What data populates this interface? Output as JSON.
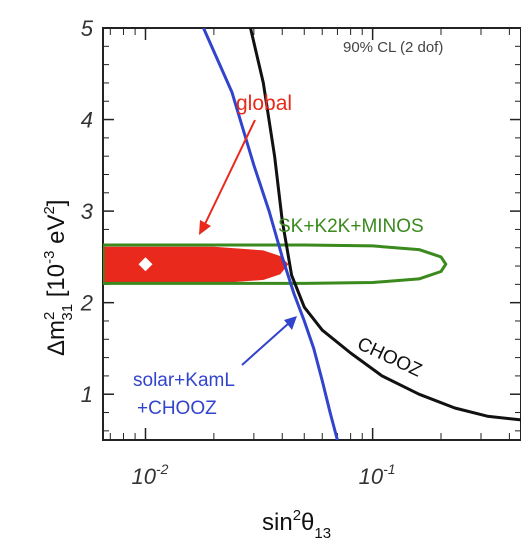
{
  "chart_data": {
    "type": "line",
    "title": "",
    "xlabel": "sin²θ₁₃",
    "ylabel": "Δm²₃₁ [10⁻³ eV²]",
    "xscale": "log",
    "xlim": [
      0.0065,
      0.45
    ],
    "ylim": [
      0.5,
      5
    ],
    "grid": false,
    "x_ticks": [
      {
        "value": 0.01,
        "label_base": "10",
        "label_exp": "-2"
      },
      {
        "value": 0.1,
        "label_base": "10",
        "label_exp": "-1"
      }
    ],
    "y_ticks": [
      {
        "value": 1,
        "label": "1"
      },
      {
        "value": 2,
        "label": "2"
      },
      {
        "value": 3,
        "label": "3"
      },
      {
        "value": 4,
        "label": "4"
      },
      {
        "value": 5,
        "label": "5"
      }
    ],
    "cl_note": "90% CL (2 dof)",
    "series": [
      {
        "name": "CHOOZ",
        "color": "#111111",
        "style": "line",
        "points": [
          [
            0.029,
            5.0
          ],
          [
            0.033,
            4.4
          ],
          [
            0.037,
            3.6
          ],
          [
            0.04,
            2.9
          ],
          [
            0.044,
            2.3
          ],
          [
            0.05,
            1.95
          ],
          [
            0.06,
            1.7
          ],
          [
            0.08,
            1.45
          ],
          [
            0.11,
            1.2
          ],
          [
            0.16,
            1.0
          ],
          [
            0.23,
            0.85
          ],
          [
            0.32,
            0.76
          ],
          [
            0.45,
            0.72
          ]
        ]
      },
      {
        "name": "solar+KamL +CHOOZ",
        "color": "#3344cc",
        "style": "line",
        "points": [
          [
            0.018,
            5.0
          ],
          [
            0.024,
            4.3
          ],
          [
            0.03,
            3.5
          ],
          [
            0.035,
            3.0
          ],
          [
            0.04,
            2.5
          ],
          [
            0.045,
            2.1
          ],
          [
            0.05,
            1.8
          ],
          [
            0.055,
            1.5
          ],
          [
            0.06,
            1.15
          ],
          [
            0.065,
            0.8
          ],
          [
            0.07,
            0.5
          ]
        ]
      },
      {
        "name": "SK+K2K+MINOS",
        "color": "#3a8a1e",
        "style": "closed",
        "points": [
          [
            0.0065,
            2.63
          ],
          [
            0.05,
            2.63
          ],
          [
            0.1,
            2.62
          ],
          [
            0.16,
            2.58
          ],
          [
            0.2,
            2.5
          ],
          [
            0.21,
            2.42
          ],
          [
            0.2,
            2.34
          ],
          [
            0.16,
            2.26
          ],
          [
            0.1,
            2.22
          ],
          [
            0.05,
            2.21
          ],
          [
            0.0065,
            2.21
          ]
        ]
      },
      {
        "name": "global",
        "color": "#e8291c",
        "style": "filled",
        "points": [
          [
            0.0065,
            2.6
          ],
          [
            0.02,
            2.6
          ],
          [
            0.033,
            2.56
          ],
          [
            0.039,
            2.5
          ],
          [
            0.042,
            2.42
          ],
          [
            0.039,
            2.32
          ],
          [
            0.033,
            2.26
          ],
          [
            0.02,
            2.22
          ],
          [
            0.0065,
            2.22
          ]
        ]
      }
    ],
    "best_fit": {
      "x": 0.01,
      "y": 2.42,
      "color": "#ffffff"
    },
    "labels": {
      "global": {
        "text": "global",
        "color": "#e8291c"
      },
      "sk": {
        "text": "SK+K2K+MINOS",
        "color": "#3a8a1e"
      },
      "chooz": {
        "text": "CHOOZ",
        "color": "#111111"
      },
      "solar_line1": {
        "text": "solar+KamL",
        "color": "#3344cc"
      },
      "solar_line2": {
        "text": "+CHOOZ",
        "color": "#3344cc"
      }
    }
  }
}
